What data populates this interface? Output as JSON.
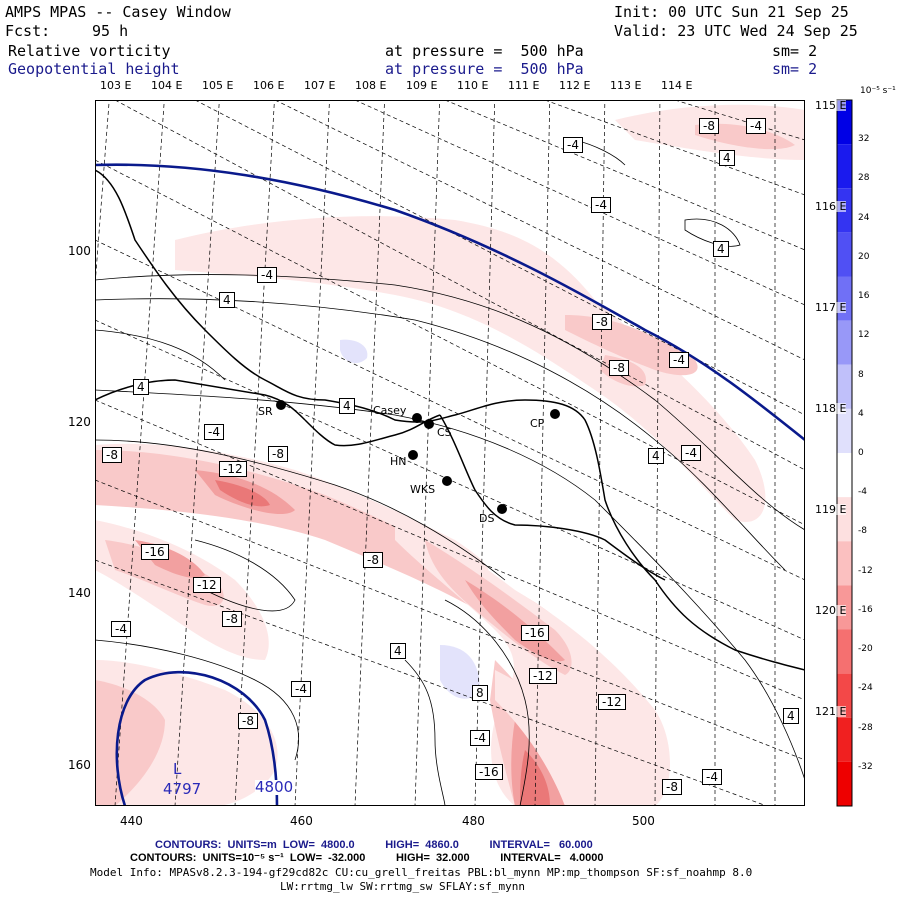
{
  "header": {
    "title": "AMPS MPAS -- Casey Window",
    "init": "Init: 00 UTC Sun 21 Sep 25",
    "fcst": "Fcst:",
    "fcst_hours": "95 h",
    "valid": "Valid: 23 UTC Wed 24 Sep 25",
    "field1": "Relative vorticity",
    "field1_level": "at pressure =  500 hPa",
    "field1_sm": "sm= 2",
    "field2": "Geopotential height",
    "field2_level": "at pressure =  500 hPa",
    "field2_sm": "sm= 2"
  },
  "map": {
    "lon_labels": [
      "103 E",
      "104 E",
      "105 E",
      "106 E",
      "107 E",
      "108 E",
      "109 E",
      "110 E",
      "111 E",
      "112 E",
      "113 E",
      "114 E"
    ],
    "lon_labels_right": [
      "115 E",
      "116 E",
      "117 E",
      "118 E",
      "119 E",
      "120 E",
      "121 E"
    ],
    "x_axis": [
      "440",
      "460",
      "480",
      "500"
    ],
    "y_axis": [
      "100",
      "120",
      "140",
      "160"
    ],
    "stations": [
      {
        "name": "SR"
      },
      {
        "name": "Casey"
      },
      {
        "name": "CS"
      },
      {
        "name": "CP"
      },
      {
        "name": "HN"
      },
      {
        "name": "WKS"
      },
      {
        "name": "DS"
      }
    ],
    "contour_labels": [
      "-8",
      "-4",
      "-4",
      "4",
      "-4",
      "4",
      "-4",
      "-8",
      "-8",
      "-4",
      "4",
      "4",
      "-4",
      "-8",
      "-12",
      "-8",
      "4",
      "-4",
      "-8",
      "4",
      "-16",
      "-12",
      "-8",
      "-4",
      "4",
      "-4",
      "-16",
      "-12",
      "8",
      "-12",
      "-8",
      "-4",
      "-16",
      "-8",
      "-4",
      "4"
    ],
    "height_labels": {
      "low_marker": "L",
      "low_value": "4797",
      "contour_value": "4800"
    },
    "colors": {
      "height_contour": "#0a1a8c",
      "positive": "#1515e0",
      "negative": "#ff1010"
    }
  },
  "colorbar": {
    "unit_label": "10⁻⁵ s⁻¹",
    "ticks": [
      "32",
      "28",
      "24",
      "20",
      "16",
      "12",
      "8",
      "4",
      "0",
      "-4",
      "-8",
      "-12",
      "-16",
      "-20",
      "-24",
      "-28",
      "-32"
    ]
  },
  "footer": {
    "line1": "CONTOURS:  UNITS=m  LOW=  4800.0          HIGH=  4860.0          INTERVAL=   60.000",
    "line2": "CONTOURS:  UNITS=10⁻⁵ s⁻¹  LOW=  -32.000          HIGH=  32.000          INTERVAL=   4.0000",
    "line3": "Model Info: MPASv8.2.3-194-gf29cd82c CU:cu_grell_freitas PBL:bl_mynn MP:mp_thompson SF:sf_noahmp 8.0",
    "line4": "LW:rrtmg_lw SW:rrtmg_sw SFLAY:sf_mynn"
  }
}
